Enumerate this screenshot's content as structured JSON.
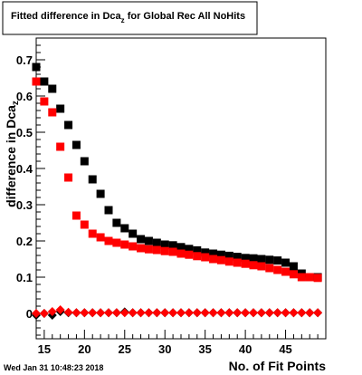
{
  "chart_data": {
    "type": "scatter",
    "title": {
      "main": "Fitted difference in Dca",
      "subscript": "z",
      "rest": " for Global Rec All NoHits"
    },
    "xlabel": "No. of Fit Points",
    "ylabel": {
      "main": "difference in Dca",
      "subscript": "z"
    },
    "timestamp": "Wed Jan 31 10:48:23 2018",
    "xlim": [
      14,
      50
    ],
    "ylim": [
      -0.07,
      0.76
    ],
    "x_ticks": [
      15,
      20,
      25,
      30,
      35,
      40,
      45
    ],
    "x_tick_labels": [
      "15",
      "20",
      "25",
      "30",
      "35",
      "40",
      "45"
    ],
    "y_ticks": [
      0,
      0.1,
      0.2,
      0.3,
      0.4,
      0.5,
      0.6,
      0.7
    ],
    "y_tick_labels": [
      "0",
      "0.1",
      "0.2",
      "0.3",
      "0.4",
      "0.5",
      "0.6",
      "0.7"
    ],
    "colors": {
      "series_black": "#000000",
      "series_red": "#ff0000",
      "axes": "#000000",
      "background": "#ffffff"
    },
    "series": [
      {
        "marker": "square",
        "color": "#000000",
        "x": [
          14,
          15,
          16,
          17,
          18,
          19,
          20,
          21,
          22,
          23,
          24,
          25,
          26,
          27,
          28,
          29,
          30,
          31,
          32,
          33,
          34,
          35,
          36,
          37,
          38,
          39,
          40,
          41,
          42,
          43,
          44,
          45,
          46,
          47,
          48,
          49
        ],
        "y": [
          0.68,
          0.64,
          0.62,
          0.565,
          0.52,
          0.465,
          0.42,
          0.37,
          0.33,
          0.285,
          0.25,
          0.235,
          0.22,
          0.205,
          0.2,
          0.195,
          0.19,
          0.188,
          0.183,
          0.178,
          0.174,
          0.168,
          0.165,
          0.162,
          0.159,
          0.156,
          0.153,
          0.152,
          0.15,
          0.148,
          0.146,
          0.14,
          0.13,
          0.11,
          0.1,
          0.1
        ]
      },
      {
        "marker": "square",
        "color": "#ff0000",
        "x": [
          14,
          15,
          16,
          17,
          18,
          19,
          20,
          21,
          22,
          23,
          24,
          25,
          26,
          27,
          28,
          29,
          30,
          31,
          32,
          33,
          34,
          35,
          36,
          37,
          38,
          39,
          40,
          41,
          42,
          43,
          44,
          45,
          46,
          47,
          48,
          49
        ],
        "y": [
          0.64,
          0.585,
          0.555,
          0.46,
          0.375,
          0.27,
          0.245,
          0.22,
          0.21,
          0.2,
          0.195,
          0.19,
          0.185,
          0.18,
          0.177,
          0.175,
          0.172,
          0.17,
          0.165,
          0.162,
          0.158,
          0.155,
          0.15,
          0.147,
          0.143,
          0.14,
          0.137,
          0.133,
          0.13,
          0.125,
          0.12,
          0.115,
          0.108,
          0.1,
          0.1,
          0.098
        ]
      },
      {
        "marker": "diamond",
        "color": "#000000",
        "x": [
          14,
          15,
          16,
          17,
          18,
          19,
          20,
          21,
          22,
          23,
          24,
          25,
          26,
          27,
          28,
          29,
          30,
          31,
          32,
          33,
          34,
          35,
          36,
          37,
          38,
          39,
          40,
          41,
          42,
          43,
          44,
          45,
          46,
          47,
          48,
          49
        ],
        "y": [
          -0.005,
          0.0,
          -0.005,
          0.005,
          0.002,
          0.002,
          0.002,
          0.002,
          0.002,
          0.002,
          0.002,
          0.004,
          0.002,
          0.002,
          0.002,
          0.002,
          0.002,
          0.002,
          0.002,
          0.002,
          0.002,
          0.002,
          0.002,
          0.002,
          0.002,
          0.002,
          0.002,
          0.002,
          0.002,
          0.002,
          0.002,
          0.002,
          0.002,
          0.002,
          0.002,
          0.002
        ]
      },
      {
        "marker": "diamond",
        "color": "#ff0000",
        "x": [
          14,
          15,
          16,
          17,
          18,
          19,
          20,
          21,
          22,
          23,
          24,
          25,
          26,
          27,
          28,
          29,
          30,
          31,
          32,
          33,
          34,
          35,
          36,
          37,
          38,
          39,
          40,
          41,
          42,
          43,
          44,
          45,
          46,
          47,
          48,
          49
        ],
        "y": [
          0.0,
          0.0,
          0.005,
          0.01,
          0.003,
          0.002,
          0.002,
          0.002,
          0.002,
          0.002,
          0.002,
          0.002,
          0.002,
          0.002,
          0.002,
          0.002,
          0.002,
          0.002,
          0.002,
          0.002,
          0.002,
          0.002,
          0.002,
          0.002,
          0.002,
          0.002,
          0.002,
          0.002,
          0.002,
          0.002,
          0.002,
          0.002,
          0.002,
          0.002,
          0.002,
          0.002
        ]
      }
    ]
  }
}
